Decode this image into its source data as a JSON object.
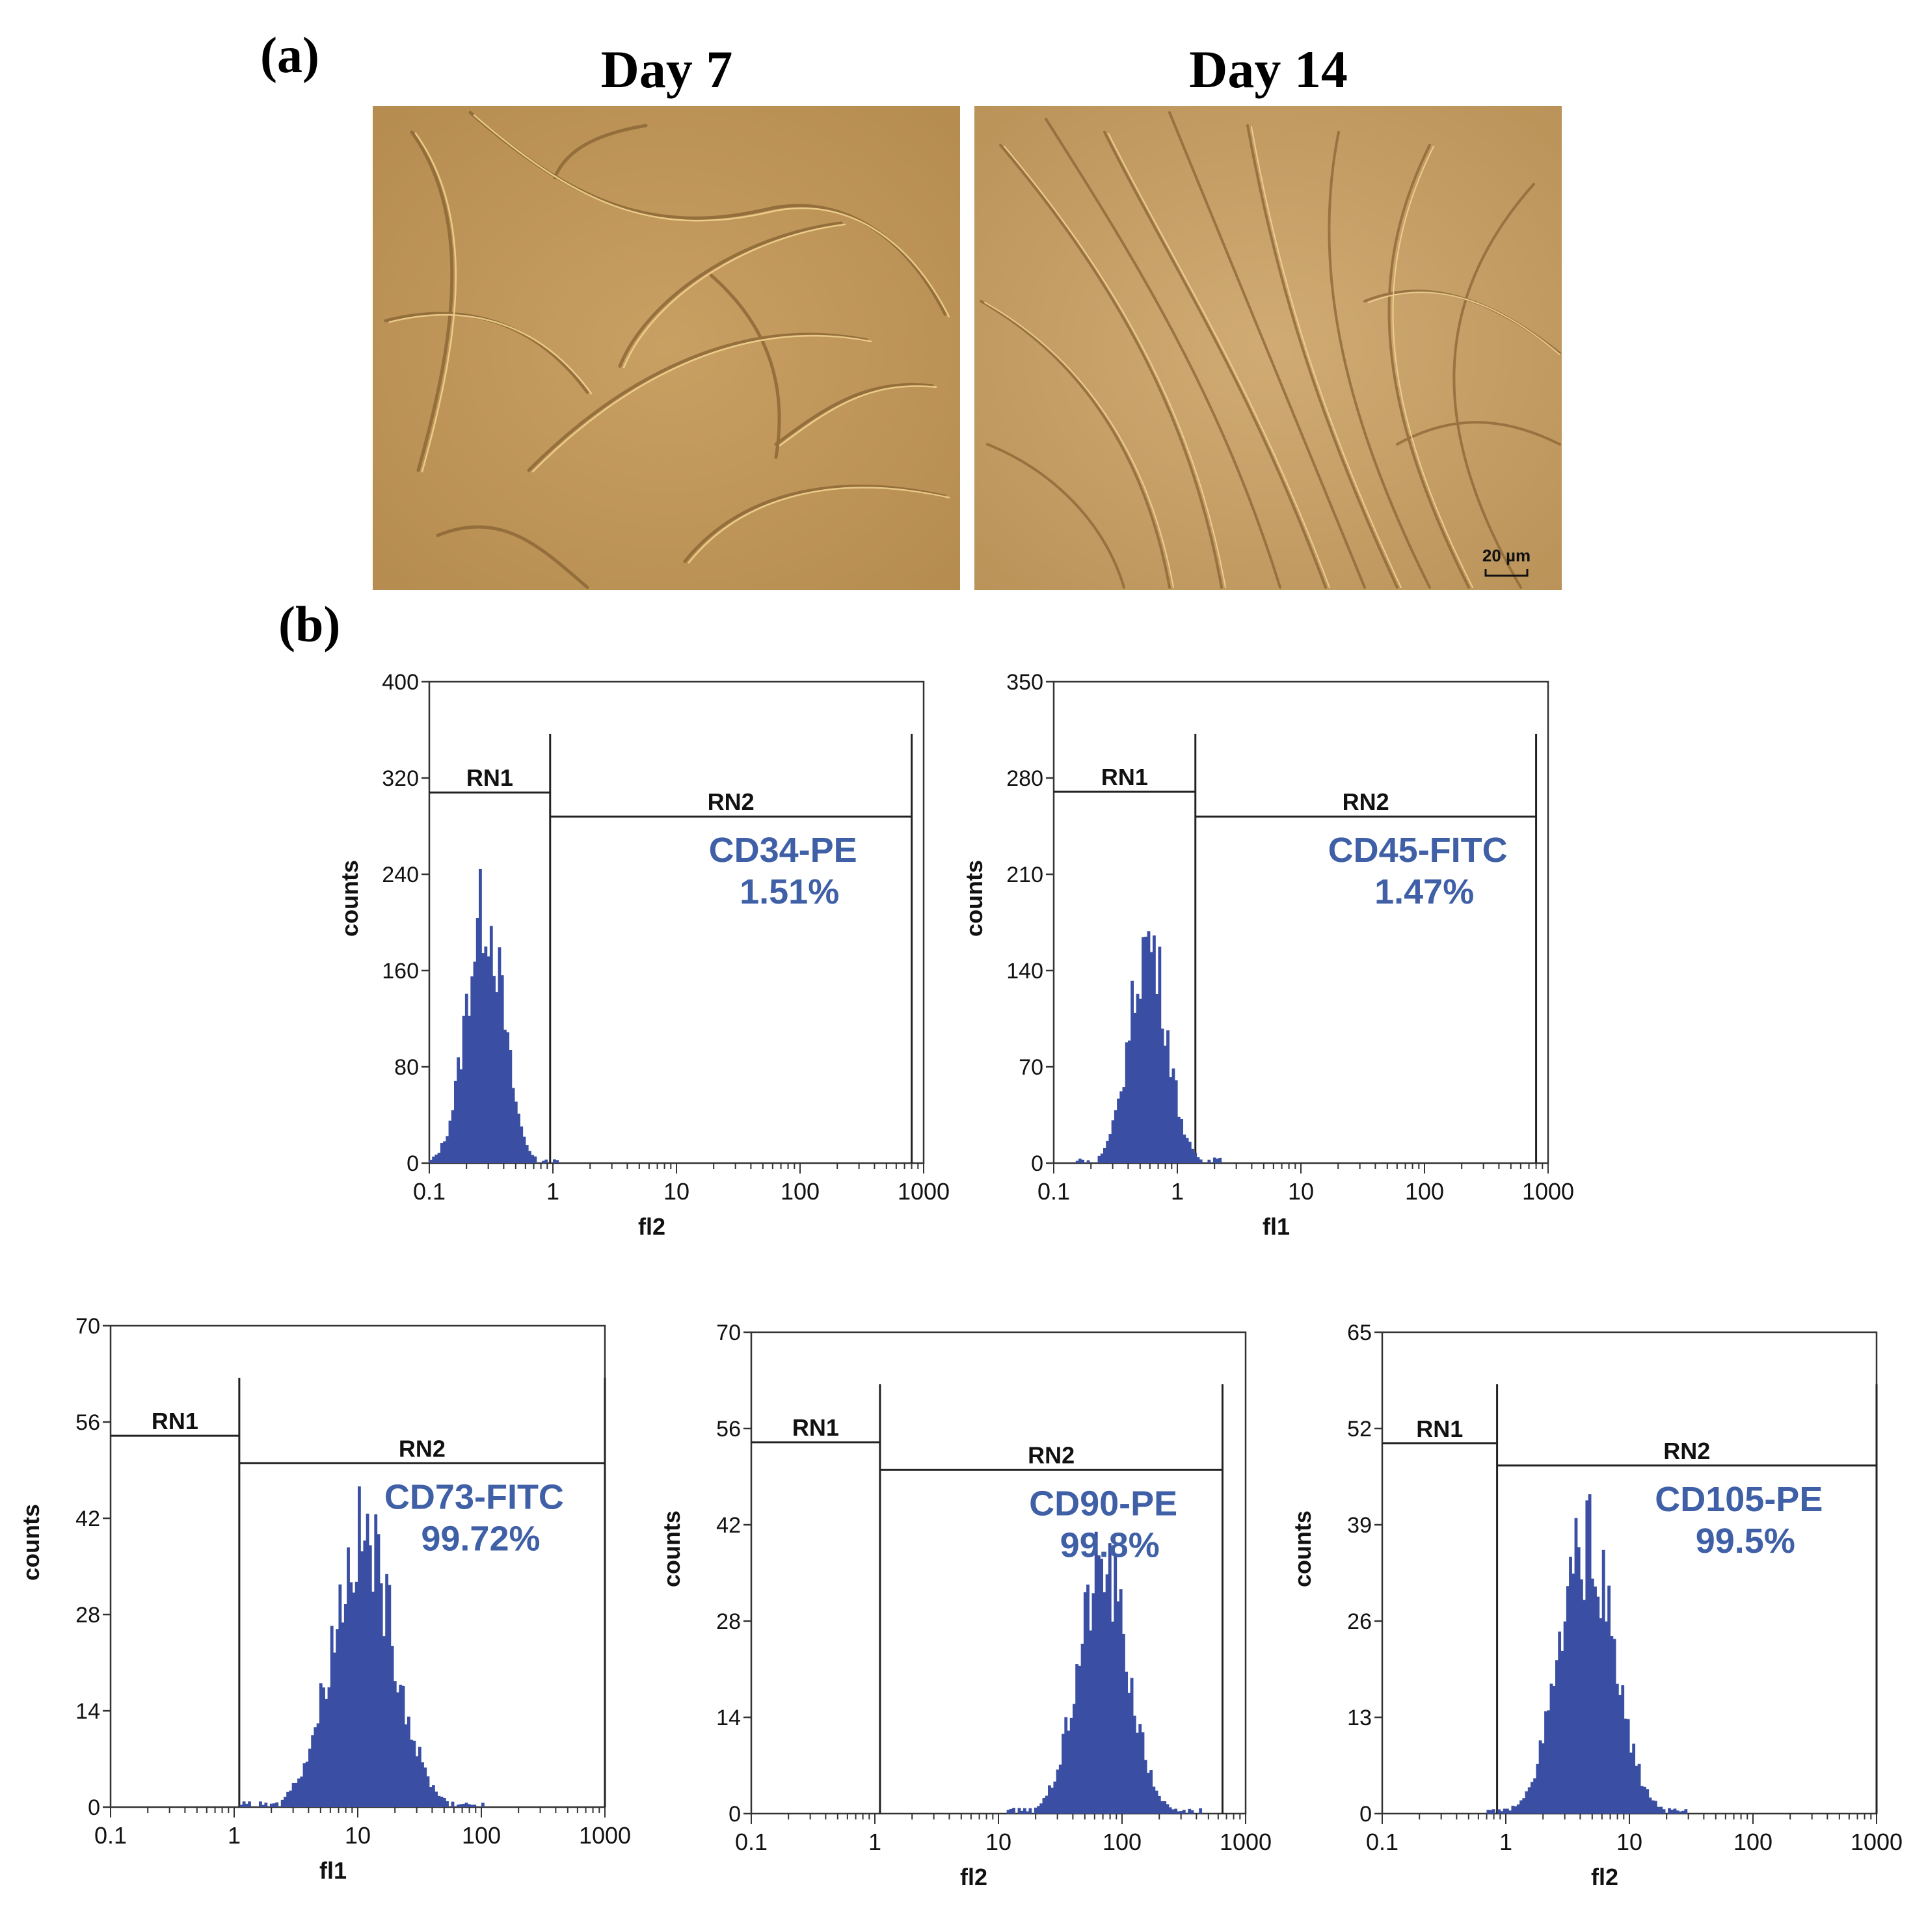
{
  "panel_a": {
    "label": "(a)",
    "images": [
      {
        "title": "Day 7"
      },
      {
        "title": "Day 14",
        "scale_bar": "20 µm"
      }
    ]
  },
  "panel_b": {
    "label": "(b)"
  },
  "chart_data": [
    {
      "type": "histogram",
      "marker": "CD34-PE",
      "percent": "1.51%",
      "xlabel": "fl2",
      "ylabel": "counts",
      "xscale": "log",
      "xlim": [
        0.1,
        1000
      ],
      "ylim": [
        0,
        400
      ],
      "xticks": [
        "0.1",
        "1",
        "10",
        "100",
        "1000"
      ],
      "yticks": [
        0,
        80,
        160,
        240,
        320,
        400
      ],
      "gates": [
        {
          "name": "RN1",
          "from": 0.1,
          "to": 0.95,
          "level": 308
        },
        {
          "name": "RN2",
          "from": 0.95,
          "to": 800,
          "level": 288
        }
      ],
      "distribution": {
        "peak_x": 0.28,
        "peak_y": 215,
        "sigma_log": 0.15
      }
    },
    {
      "type": "histogram",
      "marker": "CD45-FITC",
      "percent": "1.47%",
      "xlabel": "fl1",
      "ylabel": "counts",
      "xscale": "log",
      "xlim": [
        0.1,
        1000
      ],
      "ylim": [
        0,
        350
      ],
      "xticks": [
        "0.1",
        "1",
        "10",
        "100",
        "1000"
      ],
      "yticks": [
        0,
        70,
        140,
        210,
        280,
        350
      ],
      "gates": [
        {
          "name": "RN1",
          "from": 0.1,
          "to": 1.4,
          "level": 270
        },
        {
          "name": "RN2",
          "from": 1.4,
          "to": 800,
          "level": 252
        }
      ],
      "distribution": {
        "peak_x": 0.58,
        "peak_y": 165,
        "sigma_log": 0.15
      }
    },
    {
      "type": "histogram",
      "marker": "CD73-FITC",
      "percent": "99.72%",
      "xlabel": "fl1",
      "ylabel": "counts",
      "xscale": "log",
      "xlim": [
        0.1,
        1000
      ],
      "ylim": [
        0,
        70
      ],
      "xticks": [
        "0.1",
        "1",
        "10",
        "100",
        "1000"
      ],
      "yticks": [
        0,
        14,
        28,
        42,
        56,
        70
      ],
      "gates": [
        {
          "name": "RN1",
          "from": 0.1,
          "to": 1.1,
          "level": 54
        },
        {
          "name": "RN2",
          "from": 1.1,
          "to": 1000,
          "level": 50
        }
      ],
      "distribution": {
        "peak_x": 11,
        "peak_y": 40,
        "sigma_log": 0.25
      }
    },
    {
      "type": "histogram",
      "marker": "CD90-PE",
      "percent": "99.8%",
      "xlabel": "fl2",
      "ylabel": "counts",
      "xscale": "log",
      "xlim": [
        0.1,
        1000
      ],
      "ylim": [
        0,
        70
      ],
      "xticks": [
        "0.1",
        "1",
        "10",
        "100",
        "1000"
      ],
      "yticks": [
        0,
        14,
        28,
        42,
        56,
        70
      ],
      "gates": [
        {
          "name": "RN1",
          "from": 0.1,
          "to": 1.1,
          "level": 54
        },
        {
          "name": "RN2",
          "from": 1.1,
          "to": 650,
          "level": 50
        }
      ],
      "distribution": {
        "peak_x": 70,
        "peak_y": 37,
        "sigma_log": 0.2
      }
    },
    {
      "type": "histogram",
      "marker": "CD105-PE",
      "percent": "99.5%",
      "xlabel": "fl2",
      "ylabel": "counts",
      "xscale": "log",
      "xlim": [
        0.1,
        1000
      ],
      "ylim": [
        0,
        65
      ],
      "xticks": [
        "0.1",
        "1",
        "10",
        "100",
        "1000"
      ],
      "yticks": [
        0,
        13,
        26,
        39,
        52,
        65
      ],
      "gates": [
        {
          "name": "RN1",
          "from": 0.1,
          "to": 0.85,
          "level": 50
        },
        {
          "name": "RN2",
          "from": 0.85,
          "to": 1000,
          "level": 47
        }
      ],
      "distribution": {
        "peak_x": 4.5,
        "peak_y": 37,
        "sigma_log": 0.22
      }
    }
  ],
  "colors": {
    "histogram_fill": "#3a4fa3",
    "annotation": "#3f5fa6",
    "axis": "#333333"
  }
}
